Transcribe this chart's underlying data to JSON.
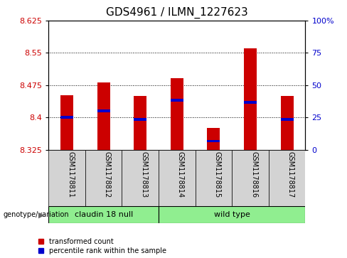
{
  "title": "GDS4961 / ILMN_1227623",
  "samples": [
    "GSM1178811",
    "GSM1178812",
    "GSM1178813",
    "GSM1178814",
    "GSM1178815",
    "GSM1178816",
    "GSM1178817"
  ],
  "bar_bottom": 8.325,
  "bar_tops": [
    8.452,
    8.482,
    8.45,
    8.492,
    8.375,
    8.56,
    8.45
  ],
  "percentile_values": [
    8.4,
    8.415,
    8.395,
    8.44,
    8.345,
    8.435,
    8.395
  ],
  "ylim_left": [
    8.325,
    8.625
  ],
  "ylim_right": [
    0,
    100
  ],
  "yticks_left": [
    8.325,
    8.4,
    8.475,
    8.55,
    8.625
  ],
  "yticks_right": [
    0,
    25,
    50,
    75,
    100
  ],
  "ytick_labels_left": [
    "8.325",
    "8.4",
    "8.475",
    "8.55",
    "8.625"
  ],
  "ytick_labels_right": [
    "0",
    "25",
    "50",
    "75",
    "100%"
  ],
  "hline_values": [
    8.4,
    8.475,
    8.55
  ],
  "bar_color": "#cc0000",
  "blue_color": "#0000cc",
  "group1_label": "claudin 18 null",
  "group2_label": "wild type",
  "group1_indices": [
    0,
    1,
    2
  ],
  "group2_indices": [
    3,
    4,
    5,
    6
  ],
  "group_bg_color": "#90ee90",
  "sample_bg_color": "#d3d3d3",
  "legend_red": "transformed count",
  "legend_blue": "percentile rank within the sample",
  "genotype_label": "genotype/variation",
  "bar_width": 0.35,
  "tick_label_color_left": "#cc0000",
  "tick_label_color_right": "#0000cc",
  "title_fontsize": 11,
  "tick_fontsize": 8,
  "sample_fontsize": 7,
  "legend_fontsize": 7,
  "geno_fontsize": 8
}
